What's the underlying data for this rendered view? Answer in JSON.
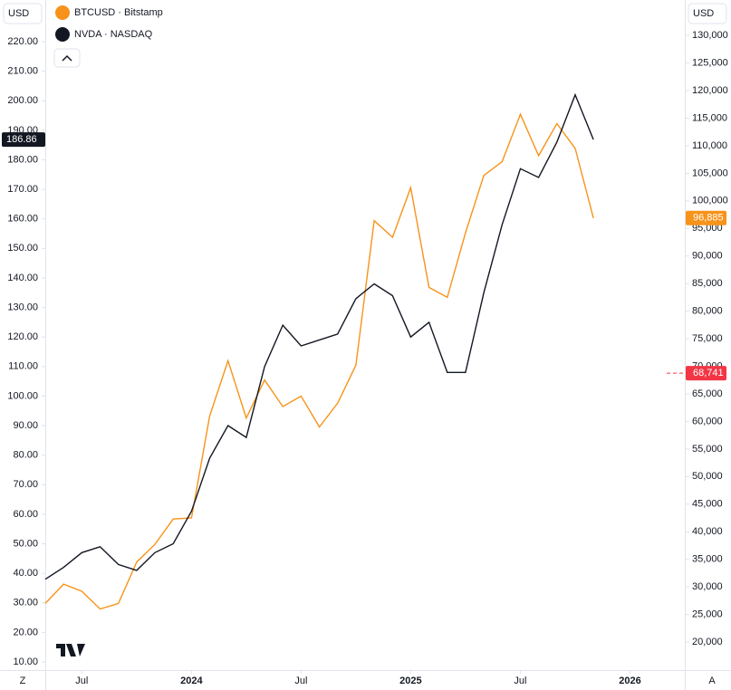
{
  "chart_data": {
    "type": "line",
    "currency": "USD",
    "x": [
      "2023-05",
      "2023-06",
      "2023-07",
      "2023-08",
      "2023-09",
      "2023-10",
      "2023-11",
      "2023-12",
      "2024-01",
      "2024-02",
      "2024-03",
      "2024-04",
      "2024-05",
      "2024-06",
      "2024-07",
      "2024-08",
      "2024-09",
      "2024-10",
      "2024-11",
      "2024-12",
      "2025-01",
      "2025-02",
      "2025-03",
      "2025-04",
      "2025-05",
      "2025-06",
      "2025-07",
      "2025-08",
      "2025-09",
      "2025-10",
      "2025-11"
    ],
    "xlim": [
      "2023-05",
      "2026-04"
    ],
    "xticks": [
      {
        "value": "2023-07",
        "label": "Jul"
      },
      {
        "value": "2024-01",
        "label": "2024"
      },
      {
        "value": "2024-07",
        "label": "Jul"
      },
      {
        "value": "2025-01",
        "label": "2025"
      },
      {
        "value": "2025-07",
        "label": "Jul"
      },
      {
        "value": "2026-01",
        "label": "2026"
      }
    ],
    "series": [
      {
        "name": "BTCUSD · Bitstamp",
        "color": "#f7931a",
        "axis": "y2",
        "last_label": "96,885",
        "values": [
          27000,
          30500,
          29200,
          26000,
          27000,
          34500,
          37700,
          42300,
          42500,
          61000,
          71000,
          60600,
          67500,
          62700,
          64600,
          59000,
          63300,
          70200,
          96400,
          93400,
          102400,
          84300,
          82500,
          94200,
          104600,
          107100,
          115700,
          108200,
          114000,
          109500,
          96885
        ]
      },
      {
        "name": "NVDA · NASDAQ",
        "color": "#131722",
        "axis": "y",
        "last_label": "186.86",
        "values": [
          38,
          42,
          47,
          49,
          43,
          41,
          47,
          50,
          61,
          79,
          90,
          86,
          110,
          124,
          117,
          119,
          121,
          133,
          138,
          134,
          120,
          125,
          108,
          108,
          135,
          158,
          177,
          174,
          186,
          202,
          186.86
        ]
      }
    ],
    "ylim": [
      7.24,
      234.1
    ],
    "yticks": [
      {
        "value": 10,
        "label": "10.00"
      },
      {
        "value": 20,
        "label": "20.00"
      },
      {
        "value": 30,
        "label": "30.00"
      },
      {
        "value": 40,
        "label": "40.00"
      },
      {
        "value": 50,
        "label": "50.00"
      },
      {
        "value": 60,
        "label": "60.00"
      },
      {
        "value": 70,
        "label": "70.00"
      },
      {
        "value": 80,
        "label": "80.00"
      },
      {
        "value": 90,
        "label": "90.00"
      },
      {
        "value": 100,
        "label": "100.00"
      },
      {
        "value": 110,
        "label": "110.00"
      },
      {
        "value": 120,
        "label": "120.00"
      },
      {
        "value": 130,
        "label": "130.00"
      },
      {
        "value": 140,
        "label": "140.00"
      },
      {
        "value": 150,
        "label": "150.00"
      },
      {
        "value": 160,
        "label": "160.00"
      },
      {
        "value": 170,
        "label": "170.00"
      },
      {
        "value": 180,
        "label": "180.00"
      },
      {
        "value": 190,
        "label": "190.00"
      },
      {
        "value": 200,
        "label": "200.00"
      },
      {
        "value": 210,
        "label": "210.00"
      },
      {
        "value": 220,
        "label": "220.00"
      }
    ],
    "y2lim": [
      14910,
      136420
    ],
    "y2ticks": [
      {
        "value": 20000,
        "label": "20,000"
      },
      {
        "value": 25000,
        "label": "25,000"
      },
      {
        "value": 30000,
        "label": "30,000"
      },
      {
        "value": 35000,
        "label": "35,000"
      },
      {
        "value": 40000,
        "label": "40,000"
      },
      {
        "value": 45000,
        "label": "45,000"
      },
      {
        "value": 50000,
        "label": "50,000"
      },
      {
        "value": 55000,
        "label": "55,000"
      },
      {
        "value": 60000,
        "label": "60,000"
      },
      {
        "value": 65000,
        "label": "65,000"
      },
      {
        "value": 70000,
        "label": "70,000"
      },
      {
        "value": 75000,
        "label": "75,000"
      },
      {
        "value": 80000,
        "label": "80,000"
      },
      {
        "value": 85000,
        "label": "85,000"
      },
      {
        "value": 90000,
        "label": "90,000"
      },
      {
        "value": 95000,
        "label": "95,000"
      },
      {
        "value": 100000,
        "label": "100,000"
      },
      {
        "value": 105000,
        "label": "105,000"
      },
      {
        "value": 110000,
        "label": "110,000"
      },
      {
        "value": 115000,
        "label": "115,000"
      },
      {
        "value": 120000,
        "label": "120,000"
      },
      {
        "value": 125000,
        "label": "125,000"
      },
      {
        "value": 130000,
        "label": "130,000"
      }
    ],
    "marker": {
      "value": 68741,
      "label": "68,741",
      "color": "#f23645"
    },
    "bottom_left": "Z",
    "bottom_right": "A",
    "grid": false
  }
}
